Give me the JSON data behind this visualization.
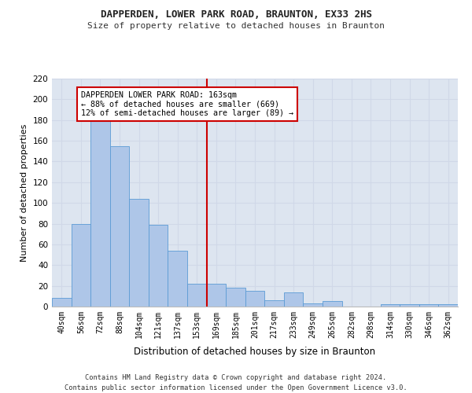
{
  "title1": "DAPPERDEN, LOWER PARK ROAD, BRAUNTON, EX33 2HS",
  "title2": "Size of property relative to detached houses in Braunton",
  "xlabel": "Distribution of detached houses by size in Braunton",
  "ylabel": "Number of detached properties",
  "footnote1": "Contains HM Land Registry data © Crown copyright and database right 2024.",
  "footnote2": "Contains public sector information licensed under the Open Government Licence v3.0.",
  "bar_labels": [
    "40sqm",
    "56sqm",
    "72sqm",
    "88sqm",
    "104sqm",
    "121sqm",
    "137sqm",
    "153sqm",
    "169sqm",
    "185sqm",
    "201sqm",
    "217sqm",
    "233sqm",
    "249sqm",
    "265sqm",
    "282sqm",
    "298sqm",
    "314sqm",
    "330sqm",
    "346sqm",
    "362sqm"
  ],
  "bar_values": [
    8,
    80,
    181,
    155,
    104,
    79,
    54,
    22,
    22,
    18,
    15,
    6,
    14,
    3,
    5,
    0,
    0,
    2,
    2,
    2,
    2
  ],
  "bar_color": "#aec6e8",
  "bar_edgecolor": "#5b9bd5",
  "annotation_text": "DAPPERDEN LOWER PARK ROAD: 163sqm\n← 88% of detached houses are smaller (669)\n12% of semi-detached houses are larger (89) →",
  "annotation_box_color": "#ffffff",
  "annotation_box_edgecolor": "#cc0000",
  "vline_color": "#cc0000",
  "ylim": [
    0,
    220
  ],
  "yticks": [
    0,
    20,
    40,
    60,
    80,
    100,
    120,
    140,
    160,
    180,
    200,
    220
  ],
  "grid_color": "#d0d8e8",
  "background_color": "#dde5f0"
}
